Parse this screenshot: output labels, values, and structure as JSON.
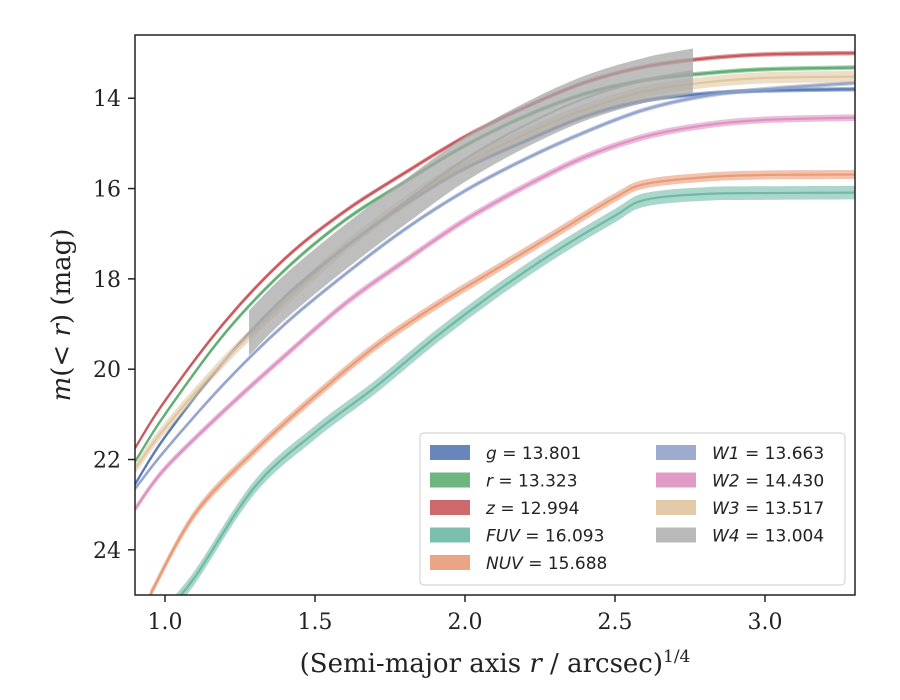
{
  "chart_data": {
    "type": "line",
    "title": "",
    "xlabel": "(Semi-major axis r / arcsec)^1/4",
    "ylabel": "m(< r) (mag)",
    "xlim": [
      0.9,
      3.3
    ],
    "ylim": [
      25.0,
      12.6
    ],
    "y_inverted": true,
    "grid": false,
    "legend_position": "lower-right",
    "legend_columns": 2,
    "x_ticks": [
      "1.0",
      "1.5",
      "2.0",
      "2.5",
      "3.0"
    ],
    "y_ticks": [
      "14",
      "16",
      "18",
      "20",
      "22",
      "24"
    ],
    "series": [
      {
        "name": "g",
        "legend_label": "g = 13.801",
        "color": "#4c72b0",
        "band_width": 0.1,
        "x": [
          0.9,
          1.0,
          1.2,
          1.4,
          1.6,
          1.8,
          2.0,
          2.2,
          2.4,
          2.6,
          2.8,
          3.0,
          3.3
        ],
        "y": [
          22.55,
          21.5,
          19.8,
          18.4,
          17.3,
          16.35,
          15.55,
          14.95,
          14.4,
          14.05,
          13.9,
          13.83,
          13.8
        ]
      },
      {
        "name": "r",
        "legend_label": "r = 13.323",
        "color": "#55a868",
        "band_width": 0.1,
        "x": [
          0.9,
          1.0,
          1.2,
          1.4,
          1.6,
          1.8,
          2.0,
          2.2,
          2.4,
          2.6,
          2.8,
          3.0,
          3.3
        ],
        "y": [
          22.05,
          21.0,
          19.2,
          17.8,
          16.7,
          15.85,
          15.05,
          14.4,
          13.9,
          13.6,
          13.45,
          13.36,
          13.32
        ]
      },
      {
        "name": "z",
        "legend_label": "z = 12.994",
        "color": "#c44e52",
        "band_width": 0.1,
        "x": [
          0.9,
          1.0,
          1.2,
          1.4,
          1.6,
          1.8,
          2.0,
          2.2,
          2.4,
          2.6,
          2.8,
          3.0,
          3.3
        ],
        "y": [
          21.75,
          20.7,
          18.95,
          17.55,
          16.5,
          15.65,
          14.85,
          14.2,
          13.65,
          13.3,
          13.12,
          13.03,
          13.0
        ]
      },
      {
        "name": "FUV",
        "legend_label": "FUV = 16.093",
        "color": "#64b5a1",
        "band_width": 0.3,
        "x": [
          1.0,
          1.1,
          1.3,
          1.5,
          1.7,
          1.9,
          2.1,
          2.3,
          2.5,
          2.6,
          2.8,
          3.0,
          3.3
        ],
        "y": [
          25.4,
          24.6,
          22.6,
          21.4,
          20.4,
          19.3,
          18.3,
          17.4,
          16.6,
          16.25,
          16.12,
          16.1,
          16.09
        ]
      },
      {
        "name": "NUV",
        "legend_label": "NUV = 15.688",
        "color": "#e8946f",
        "band_width": 0.2,
        "x": [
          0.95,
          1.1,
          1.3,
          1.5,
          1.7,
          1.9,
          2.1,
          2.3,
          2.5,
          2.6,
          2.8,
          3.0,
          3.3
        ],
        "y": [
          25.0,
          23.2,
          21.8,
          20.6,
          19.5,
          18.6,
          17.8,
          17.0,
          16.2,
          15.9,
          15.75,
          15.7,
          15.69
        ]
      },
      {
        "name": "W1",
        "legend_label": "W1 = 13.663",
        "color": "#8c9dc6",
        "band_width": 0.1,
        "x": [
          0.9,
          1.0,
          1.2,
          1.4,
          1.6,
          1.8,
          2.0,
          2.2,
          2.4,
          2.6,
          2.8,
          3.0,
          3.3
        ],
        "y": [
          22.65,
          21.8,
          20.3,
          19.0,
          17.9,
          16.9,
          16.05,
          15.35,
          14.75,
          14.25,
          13.95,
          13.8,
          13.66
        ]
      },
      {
        "name": "W2",
        "legend_label": "W2 = 14.430",
        "color": "#db8bbd",
        "band_width": 0.15,
        "x": [
          0.9,
          1.0,
          1.2,
          1.4,
          1.6,
          1.8,
          2.0,
          2.2,
          2.4,
          2.6,
          2.8,
          3.0,
          3.3
        ],
        "y": [
          23.1,
          22.2,
          20.9,
          19.7,
          18.55,
          17.6,
          16.7,
          15.95,
          15.3,
          14.85,
          14.6,
          14.48,
          14.43
        ]
      },
      {
        "name": "W3",
        "legend_label": "W3 = 13.517",
        "color": "#dec29b",
        "band_width": 0.25,
        "x": [
          0.9,
          1.0,
          1.2,
          1.4,
          1.6,
          1.8,
          2.0,
          2.2,
          2.4,
          2.6,
          2.8,
          3.0,
          3.3
        ],
        "y": [
          22.2,
          21.3,
          19.8,
          18.5,
          17.3,
          16.3,
          15.45,
          14.8,
          14.25,
          13.85,
          13.65,
          13.55,
          13.52
        ]
      },
      {
        "name": "W4",
        "legend_label": "W4 = 13.004",
        "color": "#a8a8a8",
        "band_width": 1.0,
        "x": [
          1.28,
          1.4,
          1.6,
          1.8,
          2.0,
          2.2,
          2.4,
          2.6,
          2.76
        ],
        "y": [
          19.2,
          18.4,
          17.3,
          16.3,
          15.35,
          14.6,
          14.0,
          13.6,
          13.4
        ]
      }
    ]
  }
}
